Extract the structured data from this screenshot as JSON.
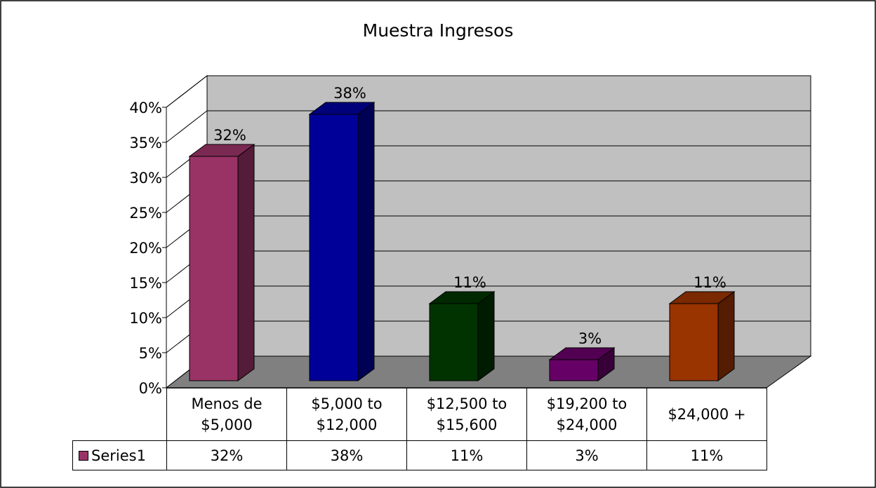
{
  "chart_data": {
    "type": "bar3d",
    "title": "Muestra Ingresos",
    "categories": [
      "Menos de $5,000",
      "$5,000 to $12,000",
      "$12,500 to $15,600",
      "$19,200 to $24,000",
      "$24,000 +"
    ],
    "series": [
      {
        "name": "Series1",
        "color": "#993366",
        "colors": [
          "#993366",
          "#000099",
          "#003300",
          "#660066",
          "#993300"
        ],
        "values": [
          32,
          38,
          11,
          3,
          11
        ],
        "value_labels": [
          "32%",
          "38%",
          "11%",
          "3%",
          "11%"
        ]
      }
    ],
    "ylim": [
      0,
      40
    ],
    "yticks": [
      {
        "value": 0,
        "label": "0%"
      },
      {
        "value": 5,
        "label": "5%"
      },
      {
        "value": 10,
        "label": "10%"
      },
      {
        "value": 15,
        "label": "15%"
      },
      {
        "value": 20,
        "label": "20%"
      },
      {
        "value": 25,
        "label": "25%"
      },
      {
        "value": 30,
        "label": "30%"
      },
      {
        "value": 35,
        "label": "35%"
      },
      {
        "value": 40,
        "label": "40%"
      }
    ],
    "grid": true
  }
}
